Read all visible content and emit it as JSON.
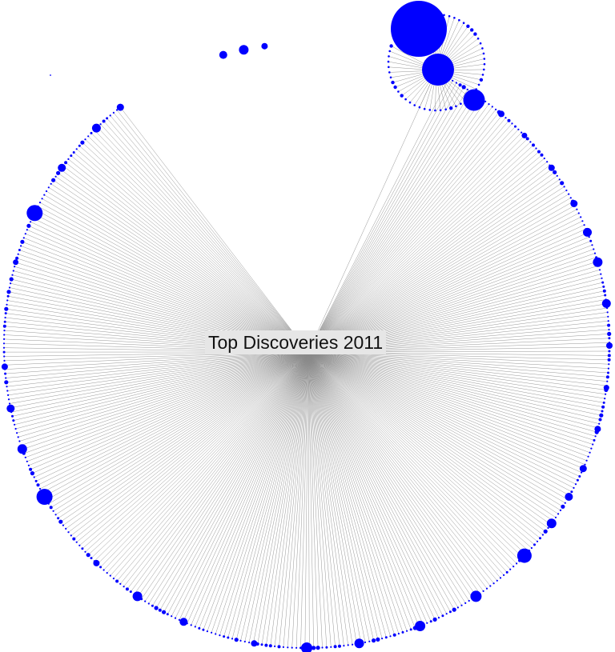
{
  "title": "Top Discoveries 2011",
  "colors": {
    "node": "#0000ff",
    "edge": "#8a8a8a",
    "label_bg": "#e6e6e6"
  },
  "chart_data": {
    "type": "radial-graph",
    "center_label": "Top Discoveries 2011",
    "edge_color": "#8a8a8a",
    "node_color": "#0000ff"
  }
}
